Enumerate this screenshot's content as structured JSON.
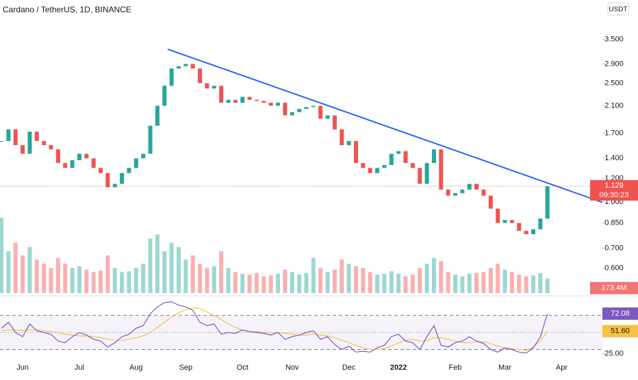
{
  "chart_data": {
    "type": "candlestick",
    "title": "Cardano / TetherUS, 1D, BINANCE",
    "currency": "USDT",
    "categories": [
      null,
      null,
      null,
      "Jun",
      null,
      null,
      null,
      null,
      null,
      null,
      null,
      "Jul",
      null,
      null,
      null,
      null,
      null,
      null,
      null,
      "Aug",
      null,
      null,
      null,
      null,
      null,
      null,
      "Sep",
      null,
      null,
      null,
      null,
      null,
      null,
      null,
      "Oct",
      null,
      null,
      null,
      null,
      null,
      null,
      "Nov",
      null,
      null,
      null,
      null,
      null,
      null,
      null,
      "Dec",
      null,
      null,
      null,
      null,
      null,
      null,
      "2022",
      null,
      null,
      null,
      null,
      null,
      null,
      null,
      "Feb",
      null,
      null,
      null,
      null,
      null,
      null,
      "Mar",
      null,
      null,
      null,
      null,
      null,
      null,
      null,
      "Apr"
    ],
    "values": [
      1.6,
      1.75,
      1.55,
      1.45,
      1.72,
      1.6,
      1.55,
      1.5,
      1.35,
      1.3,
      1.38,
      1.45,
      1.4,
      1.3,
      1.25,
      1.12,
      1.15,
      1.25,
      1.3,
      1.4,
      1.45,
      1.8,
      2.1,
      2.45,
      2.8,
      2.85,
      2.9,
      2.8,
      2.5,
      2.4,
      2.45,
      2.15,
      2.2,
      2.15,
      2.25,
      2.2,
      2.18,
      2.15,
      2.1,
      2.15,
      1.95,
      2.0,
      2.05,
      2.08,
      2.1,
      1.9,
      1.95,
      1.75,
      1.55,
      1.6,
      1.35,
      1.3,
      1.25,
      1.3,
      1.33,
      1.45,
      1.48,
      1.35,
      1.3,
      1.15,
      1.35,
      1.5,
      1.1,
      1.05,
      1.07,
      1.1,
      1.15,
      1.1,
      1.05,
      0.95,
      0.85,
      0.87,
      0.85,
      0.8,
      0.78,
      0.81,
      0.88,
      1.129,
      null,
      null
    ],
    "up_color": "#26a69a",
    "down_color": "#ef5350",
    "log_scale": true,
    "ylim": [
      0.49,
      4.75
    ],
    "yticks": [
      {
        "value": 0.6,
        "label": "0.600"
      },
      {
        "value": 0.7,
        "label": "0.700"
      },
      {
        "value": 0.85,
        "label": "0.850"
      },
      {
        "value": 1.0,
        "label": "1.000"
      },
      {
        "value": 1.2,
        "label": "1.200"
      },
      {
        "value": 1.4,
        "label": "1.400"
      },
      {
        "value": 1.7,
        "label": "1.700"
      },
      {
        "value": 2.1,
        "label": "2.100"
      },
      {
        "value": 2.5,
        "label": "2.500"
      },
      {
        "value": 2.9,
        "label": "2.900"
      },
      {
        "value": 3.5,
        "label": "3.500"
      }
    ],
    "countdown": "09:30:23",
    "trendline": {
      "start": 3.25,
      "end": 0.997,
      "color": "#2962ff"
    },
    "volume": {
      "values": [
        900,
        500,
        600,
        450,
        550,
        400,
        350,
        300,
        420,
        350,
        300,
        320,
        280,
        250,
        270,
        450,
        300,
        250,
        260,
        300,
        350,
        650,
        700,
        500,
        600,
        550,
        400,
        450,
        350,
        300,
        320,
        500,
        300,
        250,
        230,
        220,
        240,
        200,
        210,
        230,
        280,
        250,
        220,
        240,
        420,
        300,
        250,
        280,
        400,
        350,
        320,
        300,
        250,
        220,
        230,
        260,
        230,
        200,
        220,
        300,
        350,
        420,
        380,
        250,
        220,
        200,
        230,
        240,
        250,
        300,
        350,
        280,
        250,
        220,
        200,
        210,
        240,
        173.4,
        null,
        null
      ],
      "ylim": [
        0,
        900
      ],
      "last_label": "173.4M"
    },
    "rsi": {
      "values": [
        55,
        62,
        50,
        45,
        60,
        52,
        50,
        48,
        40,
        38,
        45,
        50,
        47,
        42,
        40,
        33,
        38,
        45,
        48,
        55,
        58,
        72,
        80,
        85,
        86,
        82,
        80,
        76,
        62,
        58,
        60,
        48,
        50,
        49,
        53,
        51,
        50,
        49,
        47,
        50,
        42,
        45,
        47,
        50,
        52,
        42,
        45,
        36,
        30,
        34,
        27,
        28,
        27,
        32,
        35,
        45,
        48,
        40,
        38,
        30,
        45,
        58,
        35,
        33,
        38,
        40,
        45,
        40,
        37,
        30,
        27,
        32,
        30,
        27,
        26,
        32,
        45,
        72.08,
        null,
        null
      ],
      "color": "#7e57c2",
      "ma": [
        52,
        53,
        53,
        52,
        53,
        53,
        52,
        51,
        50,
        48,
        47,
        46,
        46,
        45,
        44,
        42,
        41,
        41,
        42,
        44,
        46,
        50,
        56,
        62,
        68,
        73,
        77,
        79,
        78,
        74,
        70,
        65,
        60,
        56,
        53,
        51,
        51,
        50,
        50,
        50,
        49,
        48,
        47,
        47,
        48,
        47,
        46,
        44,
        41,
        38,
        35,
        32,
        30,
        30,
        31,
        34,
        38,
        41,
        42,
        40,
        40,
        44,
        44,
        42,
        40,
        38,
        38,
        39,
        39,
        37,
        34,
        32,
        31,
        30,
        29,
        33,
        40,
        51.6,
        null,
        null
      ],
      "ma_color": "#f5c242",
      "ma_last_label": "51.60",
      "levels": [
        70,
        50,
        30
      ],
      "ylim": [
        16,
        89
      ],
      "yticks": [
        {
          "value": 25,
          "label": "25.00"
        }
      ]
    }
  }
}
